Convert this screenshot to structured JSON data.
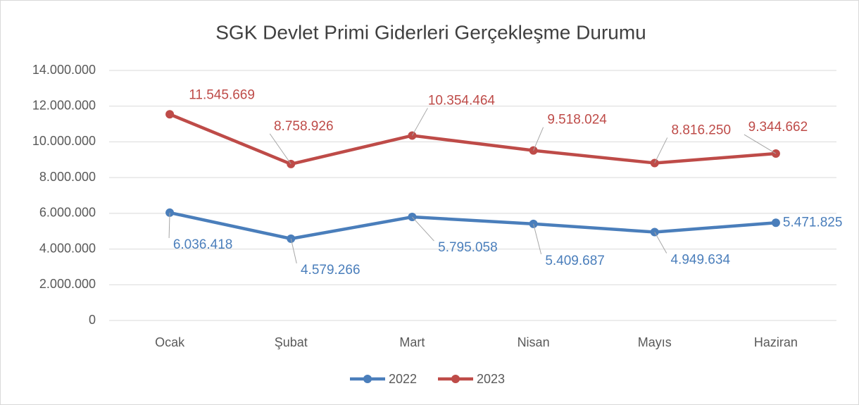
{
  "chart_data": {
    "type": "line",
    "title": "SGK Devlet Primi Giderleri Gerçekleşme Durumu",
    "categories": [
      "Ocak",
      "Şubat",
      "Mart",
      "Nisan",
      "Mayıs",
      "Haziran"
    ],
    "series": [
      {
        "name": "2022",
        "color": "#4a7ebb",
        "values": [
          6036418,
          4579266,
          5795058,
          5409687,
          4949634,
          5471825
        ],
        "value_labels": [
          "6.036.418",
          "4.579.266",
          "5.795.058",
          "5.409.687",
          "4.949.634",
          "5.471.825"
        ]
      },
      {
        "name": "2023",
        "color": "#be4b48",
        "values": [
          11545669,
          8758926,
          10354464,
          9518024,
          8816250,
          9344662
        ],
        "value_labels": [
          "11.545.669",
          "8.758.926",
          "10.354.464",
          "9.518.024",
          "8.816.250",
          "9.344.662"
        ]
      }
    ],
    "ylim": [
      0,
      14000000
    ],
    "yticks": [
      0,
      {
        "value": 2000000,
        "label": "2.000.000"
      },
      {
        "value": 4000000,
        "label": "4.000.000"
      },
      {
        "value": 6000000,
        "label": "6.000.000"
      },
      {
        "value": 8000000,
        "label": "8.000.000"
      },
      {
        "value": 10000000,
        "label": "10.000.000"
      },
      {
        "value": 12000000,
        "label": "12.000.000"
      },
      {
        "value": 14000000,
        "label": "14.000.000"
      }
    ],
    "grid": true,
    "legend": "bottom"
  }
}
